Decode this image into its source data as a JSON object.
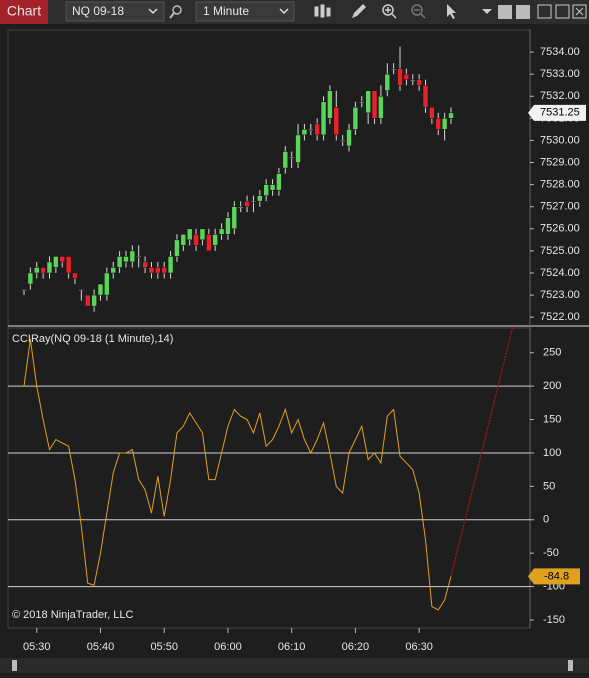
{
  "toolbar": {
    "tab": "Chart",
    "instrument": "NQ 09-18",
    "interval": "1 Minute"
  },
  "chart_data": [
    {
      "type": "candlestick",
      "x": [
        "05:28",
        "05:29",
        "05:30",
        "05:31",
        "05:32",
        "05:33",
        "05:34",
        "05:35",
        "05:36",
        "05:37",
        "05:38",
        "05:39",
        "05:40",
        "05:41",
        "05:42",
        "05:43",
        "05:44",
        "05:45",
        "05:46",
        "05:47",
        "05:48",
        "05:49",
        "05:50",
        "05:51",
        "05:52",
        "05:53",
        "05:54",
        "05:55",
        "05:56",
        "05:57",
        "05:58",
        "05:59",
        "06:00",
        "06:01",
        "06:02",
        "06:03",
        "06:04",
        "06:05",
        "06:06",
        "06:07",
        "06:08",
        "06:09",
        "06:10",
        "06:11",
        "06:12",
        "06:13",
        "06:14",
        "06:15",
        "06:16",
        "06:17",
        "06:18",
        "06:19",
        "06:20",
        "06:21",
        "06:22",
        "06:23",
        "06:24",
        "06:25",
        "06:26",
        "06:27",
        "06:28",
        "06:29",
        "06:30",
        "06:31",
        "06:32",
        "06:33",
        "06:34",
        "06:35"
      ],
      "open": [
        7523.25,
        7523.5,
        7524.0,
        7524.25,
        7524.0,
        7524.25,
        7524.75,
        7524.75,
        7524.0,
        7523.25,
        7523.0,
        7522.5,
        7523.0,
        7523.0,
        7524.0,
        7524.25,
        7524.5,
        7524.5,
        7524.75,
        7524.5,
        7524.25,
        7524.25,
        7524.25,
        7524.0,
        7524.75,
        7525.25,
        7525.5,
        7525.75,
        7525.5,
        7525.75,
        7525.25,
        7525.75,
        7525.75,
        7526.0,
        7527.0,
        7527.25,
        7527.25,
        7527.25,
        7527.5,
        7527.75,
        7527.75,
        7528.75,
        7529.25,
        7529.0,
        7530.25,
        7530.5,
        7530.75,
        7530.25,
        7531.0,
        7531.5,
        7530.0,
        7529.75,
        7530.5,
        7531.75,
        7531.25,
        7532.25,
        7531.0,
        7532.25,
        7533.25,
        7533.25,
        7533.0,
        7532.75,
        7532.75,
        7532.5,
        7531.5,
        7531.0,
        7530.5,
        7531.0
      ],
      "high": [
        7523.25,
        7524.25,
        7524.5,
        7524.25,
        7524.75,
        7524.75,
        7524.75,
        7524.75,
        7524.0,
        7523.25,
        7523.0,
        7523.25,
        7523.5,
        7524.25,
        7524.5,
        7525.0,
        7525.0,
        7525.25,
        7525.25,
        7524.75,
        7524.5,
        7524.5,
        7524.5,
        7525.0,
        7525.75,
        7525.75,
        7526.0,
        7526.0,
        7526.0,
        7526.0,
        7526.0,
        7526.25,
        7526.75,
        7527.25,
        7527.25,
        7527.5,
        7527.5,
        7527.75,
        7528.25,
        7528.25,
        7528.75,
        7529.75,
        7529.5,
        7530.75,
        7530.75,
        7530.75,
        7531.0,
        7532.0,
        7532.5,
        7532.25,
        7530.25,
        7530.75,
        7531.75,
        7532.0,
        7532.25,
        7532.25,
        7532.5,
        7533.5,
        7533.5,
        7534.25,
        7533.25,
        7533.0,
        7533.0,
        7532.75,
        7531.5,
        7531.25,
        7531.25,
        7531.5
      ],
      "low": [
        7523.0,
        7523.25,
        7523.75,
        7523.75,
        7523.75,
        7524.0,
        7524.25,
        7523.75,
        7523.5,
        7522.75,
        7522.5,
        7522.25,
        7522.75,
        7522.75,
        7523.75,
        7524.0,
        7524.25,
        7524.25,
        7524.25,
        7524.0,
        7523.75,
        7523.75,
        7523.75,
        7523.75,
        7524.5,
        7525.0,
        7525.25,
        7525.0,
        7525.25,
        7525.0,
        7525.0,
        7525.5,
        7525.5,
        7525.75,
        7526.75,
        7526.75,
        7526.75,
        7527.0,
        7527.25,
        7527.5,
        7527.5,
        7528.5,
        7528.75,
        7528.75,
        7530.0,
        7530.25,
        7530.0,
        7530.0,
        7530.75,
        7530.0,
        7529.75,
        7529.5,
        7530.25,
        7531.5,
        7530.75,
        7530.75,
        7530.75,
        7532.0,
        7533.0,
        7532.25,
        7532.5,
        7532.5,
        7532.25,
        7531.25,
        7530.75,
        7530.25,
        7530.0,
        7530.75
      ],
      "close": [
        7523.25,
        7524.0,
        7524.25,
        7524.0,
        7524.5,
        7524.75,
        7524.5,
        7524.0,
        7523.75,
        7523.25,
        7522.5,
        7523.0,
        7523.5,
        7524.0,
        7524.25,
        7524.75,
        7524.75,
        7525.0,
        7524.75,
        7524.25,
        7524.0,
        7524.0,
        7524.0,
        7524.75,
        7525.5,
        7525.75,
        7526.0,
        7525.25,
        7526.0,
        7525.0,
        7525.75,
        7526.0,
        7526.5,
        7527.0,
        7527.0,
        7527.0,
        7527.25,
        7527.5,
        7528.0,
        7528.0,
        7528.5,
        7529.5,
        7529.25,
        7530.25,
        7530.5,
        7530.5,
        7530.25,
        7531.75,
        7532.25,
        7530.25,
        7530.0,
        7530.5,
        7531.5,
        7531.75,
        7532.25,
        7531.0,
        7532.0,
        7533.0,
        7533.25,
        7532.5,
        7532.75,
        7532.75,
        7532.5,
        7531.5,
        7531.0,
        7530.5,
        7531.0,
        7531.25
      ],
      "up_color": "#5ad55a",
      "down_color": "#e8222a",
      "ylim": [
        7521.6,
        7535
      ],
      "yticks": [
        {
          "value": 7522,
          "label": "7522.00"
        },
        {
          "value": 7523,
          "label": "7523.00"
        },
        {
          "value": 7524,
          "label": "7524.00"
        },
        {
          "value": 7525,
          "label": "7525.00"
        },
        {
          "value": 7526,
          "label": "7526.00"
        },
        {
          "value": 7527,
          "label": "7527.00"
        },
        {
          "value": 7528,
          "label": "7528.00"
        },
        {
          "value": 7529,
          "label": "7529.00"
        },
        {
          "value": 7530,
          "label": "7530.00"
        },
        {
          "value": 7531,
          "label": "7531.00"
        },
        {
          "value": 7532,
          "label": "7532.00"
        },
        {
          "value": 7533,
          "label": "7533.00"
        },
        {
          "value": 7534,
          "label": "7534.00"
        }
      ],
      "xticks": [
        "05:30",
        "05:40",
        "05:50",
        "06:00",
        "06:10",
        "06:20",
        "06:30"
      ]
    },
    {
      "type": "line",
      "title": "CCIRay(NQ 09-18 (1 Minute),14)",
      "annotation": "© 2018 NinjaTrader, LLC",
      "color": "#e0a020",
      "values": [
        200,
        270,
        200,
        150,
        105,
        120,
        115,
        110,
        60,
        -10,
        -95,
        -98,
        -50,
        10,
        70,
        100,
        100,
        105,
        60,
        45,
        10,
        65,
        5,
        60,
        130,
        140,
        160,
        145,
        130,
        60,
        60,
        100,
        140,
        165,
        155,
        150,
        130,
        160,
        110,
        120,
        140,
        165,
        130,
        150,
        120,
        100,
        120,
        145,
        100,
        50,
        40,
        100,
        120,
        140,
        90,
        100,
        85,
        155,
        165,
        95,
        85,
        75,
        40,
        -30,
        -130,
        -135,
        -120,
        -84.8
      ],
      "ylim": [
        -162,
        287
      ],
      "yticks": [
        250,
        200,
        150,
        100,
        50,
        0,
        -50,
        -100,
        -150
      ],
      "levels": [
        200,
        100,
        0,
        -100
      ]
    }
  ]
}
